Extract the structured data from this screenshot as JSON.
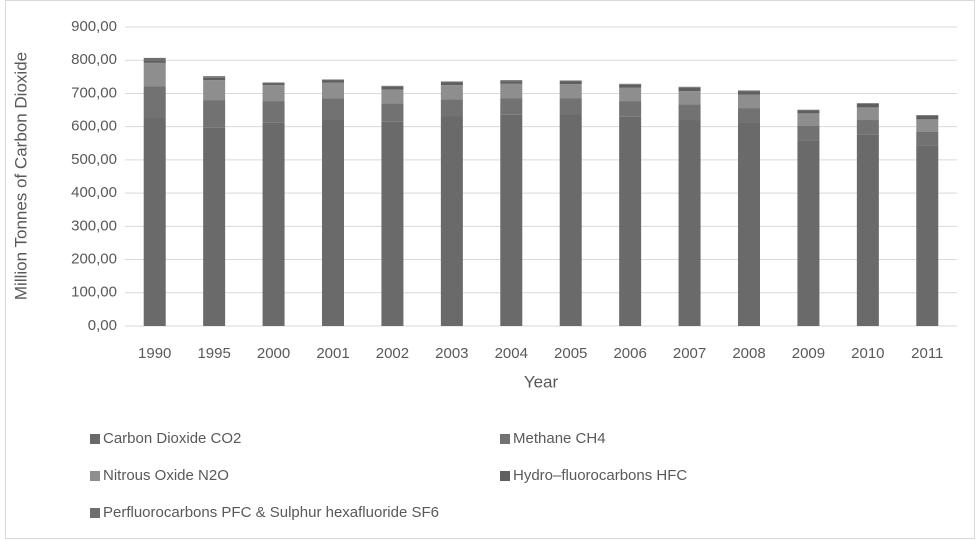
{
  "chart_data": {
    "type": "stacked-bar",
    "x_label": "Year",
    "y_label": "Million Tonnes of Carbon Dioxide",
    "categories": [
      "1990",
      "1995",
      "2000",
      "2001",
      "2002",
      "2003",
      "2004",
      "2005",
      "2006",
      "2007",
      "2008",
      "2009",
      "2010",
      "2011"
    ],
    "series": [
      {
        "name": "Carbon Dioxide CO2",
        "color": "#6a6a6a",
        "values": [
          626,
          597,
          612,
          620,
          615,
          632,
          636,
          638,
          630,
          620,
          611,
          557,
          577,
          542
        ]
      },
      {
        "name": "Methane CH4",
        "color": "#727272",
        "values": [
          96,
          83,
          65,
          65,
          55,
          50,
          50,
          48,
          47,
          47,
          45,
          45,
          43,
          42
        ]
      },
      {
        "name": "Nitrous Oxide N2O",
        "color": "#8e8e8e",
        "values": [
          70,
          60,
          48,
          48,
          42,
          43,
          43,
          42,
          40,
          40,
          40,
          38,
          38,
          38
        ]
      },
      {
        "name": "Hydro–fluorocarbons HFC",
        "color": "#5f5f5f",
        "values": [
          8,
          7,
          5,
          6,
          8,
          8,
          8,
          8,
          9,
          10,
          10,
          9,
          11,
          11
        ]
      },
      {
        "name": "Perfluorocarbons PFC & Sulphur hexafluoride SF6",
        "color": "#6e6e6e",
        "values": [
          7,
          5,
          3,
          3,
          3,
          3,
          3,
          3,
          3,
          3,
          3,
          2,
          2,
          2
        ]
      }
    ],
    "ylim": [
      0,
      900
    ],
    "yticks": [
      {
        "value": 0,
        "label": "0,00"
      },
      {
        "value": 100,
        "label": "100,00"
      },
      {
        "value": 200,
        "label": "200,00"
      },
      {
        "value": 300,
        "label": "300,00"
      },
      {
        "value": 400,
        "label": "400,00"
      },
      {
        "value": 500,
        "label": "500,00"
      },
      {
        "value": 600,
        "label": "600,00"
      },
      {
        "value": 700,
        "label": "700,00"
      },
      {
        "value": 800,
        "label": "800,00"
      },
      {
        "value": 900,
        "label": "900,00"
      }
    ],
    "grid": true,
    "legend": "bottom"
  }
}
